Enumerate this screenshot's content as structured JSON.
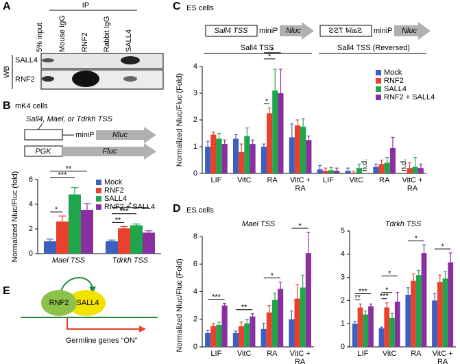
{
  "panel_a": {
    "label": "A",
    "ip": "IP",
    "lanes": [
      "5% input",
      "Mouse IgG",
      "RNF2",
      "Rabbit IgG",
      "SALL4"
    ],
    "wb": "WB",
    "rows": [
      "SALL4",
      "RNF2"
    ]
  },
  "panel_b": {
    "label": "B",
    "cells": "mK4 cells",
    "construct_label": "Sall4, Mael, or Tdrkh TSS",
    "promoter": "miniP",
    "reporter": "Nluc",
    "control_promoter": "PGK",
    "control_reporter": "Fluc"
  },
  "panel_c": {
    "label": "C",
    "cells": "ES cells",
    "construct1": {
      "box": "Sall4 TSS",
      "promoter": "miniP",
      "reporter": "Nluc"
    },
    "construct2": {
      "box": "Sall4 TSS",
      "promoter": "miniP",
      "reporter": "Nluc"
    },
    "groups": [
      "Sall4 TSS",
      "Sall4 TSS (Reversed)"
    ]
  },
  "panel_d": {
    "label": "D",
    "cells": "ES cells"
  },
  "panel_e": {
    "label": "E",
    "protein1": "RNF2",
    "protein2": "SALL4",
    "target": "Germline genes “ON”"
  },
  "chart_data": [
    {
      "type": "bar",
      "y_label": "Normalized Nluc/Fluc (fold)",
      "categories": [
        "Mael TSS",
        "Tdrkh TSS"
      ],
      "series": [
        {
          "name": "Mock",
          "color": "#3c5fc0",
          "values": [
            1.0,
            1.0
          ],
          "errors": [
            0.18,
            0.1
          ]
        },
        {
          "name": "RNF2",
          "color": "#e9412b",
          "values": [
            2.6,
            2.05
          ],
          "errors": [
            0.45,
            0.15
          ]
        },
        {
          "name": "SALL4",
          "color": "#1fa64b",
          "values": [
            4.8,
            2.3
          ],
          "errors": [
            0.55,
            0.1
          ]
        },
        {
          "name": "RNF2 + SALL4",
          "color": "#8a2f9f",
          "values": [
            3.55,
            1.7
          ],
          "errors": [
            0.5,
            0.15
          ]
        }
      ],
      "ylim": [
        0,
        6
      ],
      "yticks": [
        0,
        2,
        4,
        6
      ],
      "legend": true,
      "significance": [
        {
          "text": "*",
          "category": 0,
          "from": 0,
          "to": 1
        },
        {
          "text": "***",
          "category": 0,
          "from": 0,
          "to": 2
        },
        {
          "text": "**",
          "category": 0,
          "from": 0,
          "to": 3
        },
        {
          "text": "**",
          "category": 1,
          "from": 0,
          "to": 1
        },
        {
          "text": "***",
          "category": 1,
          "from": 0,
          "to": 2
        },
        {
          "text": "*",
          "category": 1,
          "from": 0,
          "to": 3
        }
      ]
    },
    {
      "type": "bar",
      "y_label": "Normalized Nluc/Fluc (Fold)",
      "categories": [
        "LIF",
        "VitC",
        "RA",
        "VitC + RA",
        "LIF",
        "VitC",
        "RA",
        "VitC + RA"
      ],
      "series": [
        {
          "name": "Mock",
          "color": "#3c5fc0",
          "values": [
            1.0,
            1.3,
            1.0,
            1.35,
            0.15,
            0.1,
            0.25,
            null
          ],
          "errors": [
            0.2,
            0.15,
            0.1,
            0.5,
            0.15,
            0.1,
            0.1,
            null
          ]
        },
        {
          "name": "RNF2",
          "color": "#e9412b",
          "values": [
            1.45,
            0.8,
            2.25,
            1.8,
            0.1,
            0.03,
            0.35,
            0.2
          ],
          "errors": [
            0.1,
            0.3,
            0.2,
            0.2,
            0.1,
            0.05,
            0.15,
            0.2
          ]
        },
        {
          "name": "SALL4",
          "color": "#1fa64b",
          "values": [
            1.3,
            1.4,
            3.1,
            1.75,
            0.12,
            0.2,
            0.4,
            0.25
          ],
          "errors": [
            0.2,
            0.3,
            0.8,
            0.3,
            0.1,
            0.15,
            0.2,
            0.35
          ]
        },
        {
          "name": "RNF2 + SALL4",
          "color": "#8a2f9f",
          "values": [
            1.1,
            1.1,
            3.0,
            1.25,
            0.1,
            null,
            0.95,
            0.2
          ],
          "errors": [
            0.15,
            0.15,
            0.9,
            0.15,
            0.1,
            null,
            0.4,
            0.15
          ]
        }
      ],
      "ylim": [
        0,
        4
      ],
      "yticks": [
        0,
        1,
        2,
        3,
        4
      ],
      "legend": true,
      "annotations": [
        {
          "text": "n.d.",
          "category": 5,
          "series": 3
        },
        {
          "text": "n.d.",
          "category": 7,
          "series": 0
        }
      ],
      "significance": [
        {
          "text": "*",
          "category": 2,
          "from": 0,
          "to": 1
        },
        {
          "text": "*",
          "category": 2,
          "from": 0,
          "to": 2
        },
        {
          "text": "*",
          "category": 2,
          "from": 0,
          "to": 3
        }
      ]
    },
    {
      "type": "bar",
      "title": "Mael TSS",
      "y_label": "Normalized Nluc/Fluc (Fold)",
      "categories": [
        "LIF",
        "VitC",
        "RA",
        "VitC + RA"
      ],
      "series": [
        {
          "name": "Mock",
          "color": "#3c5fc0",
          "values": [
            1.0,
            1.0,
            1.3,
            2.0
          ],
          "errors": [
            0.2,
            0.15,
            0.4,
            0.6
          ]
        },
        {
          "name": "RNF2",
          "color": "#e9412b",
          "values": [
            1.5,
            1.5,
            2.5,
            3.5
          ],
          "errors": [
            0.2,
            0.3,
            0.5,
            1.0
          ]
        },
        {
          "name": "SALL4",
          "color": "#1fa64b",
          "values": [
            1.6,
            1.7,
            3.4,
            4.3
          ],
          "errors": [
            0.2,
            0.3,
            0.5,
            0.9
          ]
        },
        {
          "name": "RNF2 + SALL4",
          "color": "#8a2f9f",
          "values": [
            3.0,
            2.2,
            4.2,
            6.8
          ],
          "errors": [
            0.15,
            0.2,
            0.5,
            1.5
          ]
        }
      ],
      "ylim": [
        0,
        8
      ],
      "yticks": [
        0,
        2,
        4,
        6,
        8
      ],
      "legend": false,
      "significance": [
        {
          "text": "***",
          "category": 0,
          "from": 0,
          "to": 3
        },
        {
          "text": "**",
          "category": 1,
          "from": 0,
          "to": 3
        },
        {
          "text": "*",
          "category": 2,
          "from": 0,
          "to": 3
        },
        {
          "text": "*",
          "category": 3,
          "from": 0,
          "to": 3
        }
      ]
    },
    {
      "type": "bar",
      "title": "Tdrkh TSS",
      "categories": [
        "LIF",
        "VitC",
        "RA",
        "VitC + RA"
      ],
      "series": [
        {
          "name": "Mock",
          "color": "#3c5fc0",
          "values": [
            1.0,
            0.8,
            2.25,
            2.0
          ],
          "errors": [
            0.1,
            0.05,
            0.3,
            0.3
          ]
        },
        {
          "name": "RNF2",
          "color": "#e9412b",
          "values": [
            1.7,
            1.7,
            2.85,
            2.8
          ],
          "errors": [
            0.15,
            0.2,
            0.3,
            0.3
          ]
        },
        {
          "name": "SALL4",
          "color": "#1fa64b",
          "values": [
            1.4,
            1.25,
            3.1,
            2.95
          ],
          "errors": [
            0.15,
            0.2,
            0.2,
            0.3
          ]
        },
        {
          "name": "RNF2 + SALL4",
          "color": "#8a2f9f",
          "values": [
            1.75,
            1.95,
            4.05,
            3.65
          ],
          "errors": [
            0.1,
            0.4,
            0.35,
            0.4
          ]
        }
      ],
      "ylim": [
        0,
        5
      ],
      "yticks": [
        0,
        1,
        2,
        3,
        4,
        5
      ],
      "legend": false,
      "significance": [
        {
          "text": "**",
          "category": 0,
          "from": 0,
          "to": 1
        },
        {
          "text": "***",
          "category": 0,
          "from": 0,
          "to": 3
        },
        {
          "text": "***",
          "category": 1,
          "from": 0,
          "to": 1
        },
        {
          "text": "*",
          "category": 1,
          "from": 0,
          "to": 2
        },
        {
          "text": "*",
          "category": 1,
          "from": 0,
          "to": 3
        },
        {
          "text": "*",
          "category": 2,
          "from": 0,
          "to": 3
        },
        {
          "text": "*",
          "category": 3,
          "from": 0,
          "to": 3
        }
      ]
    }
  ]
}
